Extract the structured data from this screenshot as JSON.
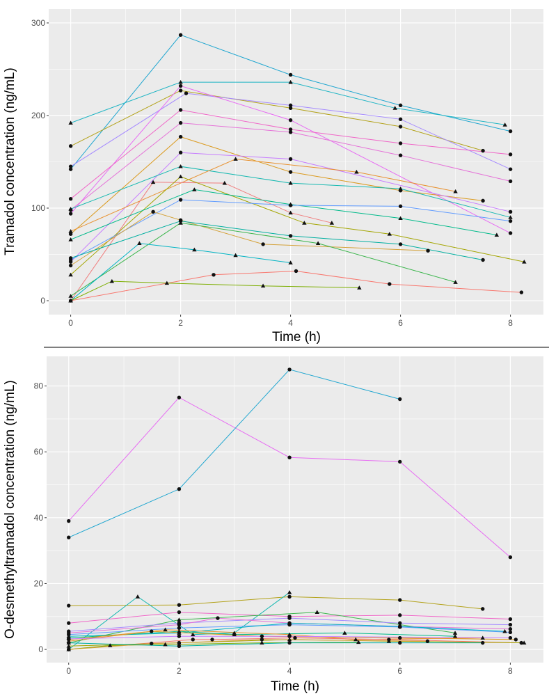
{
  "chart_data": [
    {
      "type": "line",
      "ylabel": "Tramadol concentration (ng/mL)",
      "xlabel": "Time (h)",
      "xlim": [
        -0.4,
        8.6
      ],
      "ylim": [
        -15,
        315
      ],
      "xticks": [
        "0",
        "2",
        "4",
        "6",
        "8"
      ],
      "yticks": [
        "0",
        "100",
        "200",
        "300"
      ],
      "grid": true,
      "legend": "none",
      "series": [
        {
          "color": "#1FA6D0",
          "marker": "circle",
          "points": [
            [
              0,
              142
            ],
            [
              2,
              287
            ],
            [
              4,
              244
            ],
            [
              6,
              211
            ],
            [
              8,
              183
            ]
          ]
        },
        {
          "color": "#1FB5C4",
          "marker": "triangle",
          "points": [
            [
              0,
              192
            ],
            [
              2,
              236
            ],
            [
              4,
              236
            ],
            [
              5.9,
              208
            ],
            [
              7.9,
              190
            ]
          ]
        },
        {
          "color": "#B3A21A",
          "marker": "circle",
          "points": [
            [
              0,
              167
            ],
            [
              2,
              227
            ],
            [
              4,
              208
            ],
            [
              6,
              188
            ],
            [
              7.5,
              162
            ]
          ]
        },
        {
          "color": "#A58AFF",
          "marker": "circle",
          "points": [
            [
              0,
              145
            ],
            [
              2.1,
              224
            ],
            [
              4,
              211
            ],
            [
              6,
              196
            ],
            [
              8,
              142
            ]
          ]
        },
        {
          "color": "#E76BF3",
          "marker": "circle",
          "points": [
            [
              0,
              94
            ],
            [
              2,
              232
            ],
            [
              4,
              195
            ],
            [
              8,
              73
            ]
          ]
        },
        {
          "color": "#F066C8",
          "marker": "circle",
          "points": [
            [
              0,
              110
            ],
            [
              2,
              206
            ],
            [
              4,
              185
            ],
            [
              6,
              170
            ],
            [
              8,
              158
            ]
          ]
        },
        {
          "color": "#E572D8",
          "marker": "circle",
          "points": [
            [
              0,
              98
            ],
            [
              2,
              192
            ],
            [
              4,
              182
            ],
            [
              6,
              157
            ],
            [
              8,
              129
            ]
          ]
        },
        {
          "color": "#DB9A1E",
          "marker": "circle",
          "points": [
            [
              0,
              72
            ],
            [
              2,
              177
            ],
            [
              4,
              139
            ],
            [
              6,
              119
            ],
            [
              7.5,
              108
            ]
          ]
        },
        {
          "color": "#C77CFF",
          "marker": "circle",
          "points": [
            [
              0,
              42
            ],
            [
              2,
              160
            ],
            [
              4,
              153
            ],
            [
              8,
              96
            ]
          ]
        },
        {
          "color": "#14B8B0",
          "marker": "triangle",
          "points": [
            [
              0,
              99
            ],
            [
              2,
              145
            ],
            [
              4,
              127
            ],
            [
              6,
              121
            ],
            [
              8,
              90
            ]
          ]
        },
        {
          "color": "#E8912F",
          "marker": "triangle",
          "points": [
            [
              0,
              75
            ],
            [
              3,
              153
            ],
            [
              5.2,
              139
            ],
            [
              7,
              118
            ]
          ]
        },
        {
          "color": "#F07C7C",
          "marker": "triangle",
          "points": [
            [
              0,
              0
            ],
            [
              1.5,
              128
            ],
            [
              2.8,
              127
            ],
            [
              4,
              95
            ],
            [
              4.75,
              84
            ]
          ]
        },
        {
          "color": "#A3A500",
          "marker": "triangle",
          "points": [
            [
              0,
              28
            ],
            [
              2,
              134
            ],
            [
              4.25,
              84
            ],
            [
              5.8,
              72
            ],
            [
              8.25,
              42
            ]
          ]
        },
        {
          "color": "#00BA8A",
          "marker": "triangle",
          "points": [
            [
              0,
              66
            ],
            [
              2.25,
              120
            ],
            [
              4,
              104
            ],
            [
              6,
              89
            ],
            [
              7.75,
              71
            ]
          ]
        },
        {
          "color": "#619CFF",
          "marker": "circle",
          "points": [
            [
              0,
              44
            ],
            [
              2,
              109
            ],
            [
              4,
              103
            ],
            [
              6,
              102
            ],
            [
              8,
              86
            ]
          ]
        },
        {
          "color": "#D4A23A",
          "marker": "circle",
          "points": [
            [
              0,
              38
            ],
            [
              1.5,
              96
            ],
            [
              2,
              87
            ],
            [
              3.5,
              61
            ],
            [
              6.5,
              54
            ]
          ]
        },
        {
          "color": "#00AFA0",
          "marker": "circle",
          "points": [
            [
              0,
              46
            ],
            [
              2,
              86
            ],
            [
              4,
              70
            ],
            [
              6,
              61
            ],
            [
              7.5,
              44
            ]
          ]
        },
        {
          "color": "#39B54A",
          "marker": "triangle",
          "points": [
            [
              0,
              5
            ],
            [
              2,
              84
            ],
            [
              4.5,
              62
            ],
            [
              7,
              20
            ]
          ]
        },
        {
          "color": "#00B4C4",
          "marker": "triangle",
          "points": [
            [
              0,
              0
            ],
            [
              1.25,
              62
            ],
            [
              2.25,
              55
            ],
            [
              3,
              49
            ],
            [
              4,
              41
            ]
          ]
        },
        {
          "color": "#F8766D",
          "marker": "circle",
          "points": [
            [
              0,
              0
            ],
            [
              2.6,
              28
            ],
            [
              4.1,
              32
            ],
            [
              5.8,
              18
            ],
            [
              8.2,
              9
            ]
          ]
        },
        {
          "color": "#7CAE00",
          "marker": "triangle",
          "points": [
            [
              0,
              0
            ],
            [
              0.75,
              21
            ],
            [
              1.75,
              19
            ],
            [
              3.5,
              16
            ],
            [
              5.25,
              14
            ]
          ]
        }
      ]
    },
    {
      "type": "line",
      "ylabel": "O-desmethyltramadol concentration (ng/mL)",
      "xlabel": "Time (h)",
      "xlim": [
        -0.4,
        8.6
      ],
      "ylim": [
        -4,
        89
      ],
      "xticks": [
        "0",
        "2",
        "4",
        "6",
        "8"
      ],
      "yticks": [
        "0",
        "20",
        "40",
        "60",
        "80"
      ],
      "grid": true,
      "legend": "none",
      "series": [
        {
          "color": "#E76BF3",
          "marker": "circle",
          "points": [
            [
              0,
              39
            ],
            [
              2,
              76.5
            ],
            [
              4,
              58.3
            ],
            [
              6,
              57
            ],
            [
              8,
              28
            ]
          ]
        },
        {
          "color": "#1FA6D0",
          "marker": "circle",
          "points": [
            [
              0,
              34
            ],
            [
              2,
              48.7
            ],
            [
              4,
              85
            ],
            [
              6,
              76
            ]
          ]
        },
        {
          "color": "#B3A21A",
          "marker": "circle",
          "points": [
            [
              0,
              13.3
            ],
            [
              2,
              13.5
            ],
            [
              4,
              16
            ],
            [
              6,
              15
            ],
            [
              7.5,
              12.3
            ]
          ]
        },
        {
          "color": "#14B8B0",
          "marker": "triangle",
          "points": [
            [
              0,
              0
            ],
            [
              1.25,
              16
            ],
            [
              2.25,
              4.5
            ],
            [
              3,
              5
            ],
            [
              4,
              17.3
            ]
          ]
        },
        {
          "color": "#F066C8",
          "marker": "circle",
          "points": [
            [
              0,
              8
            ],
            [
              2,
              11.3
            ],
            [
              4,
              10
            ],
            [
              6,
              10.4
            ],
            [
              8,
              9.2
            ]
          ]
        },
        {
          "color": "#39B54A",
          "marker": "triangle",
          "points": [
            [
              0,
              2
            ],
            [
              2,
              9
            ],
            [
              4.5,
              11.3
            ],
            [
              7,
              5
            ]
          ]
        },
        {
          "color": "#A58AFF",
          "marker": "circle",
          "points": [
            [
              0,
              5.5
            ],
            [
              2,
              8
            ],
            [
              4,
              9.5
            ],
            [
              6,
              8
            ],
            [
              8,
              7.5
            ]
          ]
        },
        {
          "color": "#E572D8",
          "marker": "circle",
          "points": [
            [
              0,
              5
            ],
            [
              2,
              7.5
            ],
            [
              2.7,
              9.5
            ],
            [
              4,
              8
            ],
            [
              6,
              7
            ],
            [
              8,
              6.2
            ]
          ]
        },
        {
          "color": "#619CFF",
          "marker": "circle",
          "points": [
            [
              0,
              4.5
            ],
            [
              2,
              6.5
            ],
            [
              4,
              7.5
            ],
            [
              6,
              6.8
            ],
            [
              8,
              5.2
            ]
          ]
        },
        {
          "color": "#00B4C4",
          "marker": "triangle",
          "points": [
            [
              0,
              4
            ],
            [
              2,
              5
            ],
            [
              4,
              8
            ],
            [
              6,
              7
            ],
            [
              7.9,
              5.5
            ]
          ]
        },
        {
          "color": "#00BA8A",
          "marker": "triangle",
          "points": [
            [
              0,
              3.5
            ],
            [
              2,
              5.5
            ],
            [
              3,
              4.5
            ],
            [
              5,
              5
            ],
            [
              7,
              4
            ]
          ]
        },
        {
          "color": "#DB9A1E",
          "marker": "circle",
          "points": [
            [
              0,
              3
            ],
            [
              1.5,
              5.5
            ],
            [
              3.5,
              4
            ],
            [
              6,
              3.5
            ],
            [
              8.1,
              3
            ]
          ]
        },
        {
          "color": "#E8912F",
          "marker": "triangle",
          "points": [
            [
              0,
              2.5
            ],
            [
              1.75,
              6
            ],
            [
              4,
              4.5
            ],
            [
              5.2,
              3
            ],
            [
              7.5,
              3.5
            ]
          ]
        },
        {
          "color": "#F8766D",
          "marker": "circle",
          "points": [
            [
              0,
              0
            ],
            [
              2.25,
              3
            ],
            [
              2.6,
              3
            ],
            [
              4.1,
              3.5
            ],
            [
              5.8,
              3
            ],
            [
              8.2,
              2
            ]
          ]
        },
        {
          "color": "#A3A500",
          "marker": "triangle",
          "points": [
            [
              0,
              1
            ],
            [
              2,
              2
            ],
            [
              4,
              3
            ],
            [
              5.8,
              2.5
            ],
            [
              8.25,
              2
            ]
          ]
        },
        {
          "color": "#7CAE00",
          "marker": "triangle",
          "points": [
            [
              0,
              0
            ],
            [
              0.75,
              1.2
            ],
            [
              1.75,
              1.5
            ],
            [
              3.5,
              2
            ],
            [
              5.25,
              2.2
            ]
          ]
        },
        {
          "color": "#D4A23A",
          "marker": "circle",
          "points": [
            [
              0,
              0
            ],
            [
              1.5,
              1.8
            ],
            [
              2,
              2
            ],
            [
              3.5,
              3
            ],
            [
              6.5,
              2.5
            ]
          ]
        },
        {
          "color": "#00AFA0",
          "marker": "circle",
          "points": [
            [
              0,
              2
            ],
            [
              2,
              1
            ],
            [
              4,
              2
            ],
            [
              6,
              2
            ],
            [
              7.5,
              2
            ]
          ]
        },
        {
          "color": "#C77CFF",
          "marker": "circle",
          "points": [
            [
              0,
              3.2
            ],
            [
              2,
              4
            ],
            [
              4,
              4
            ],
            [
              8,
              3.5
            ]
          ]
        }
      ]
    }
  ]
}
